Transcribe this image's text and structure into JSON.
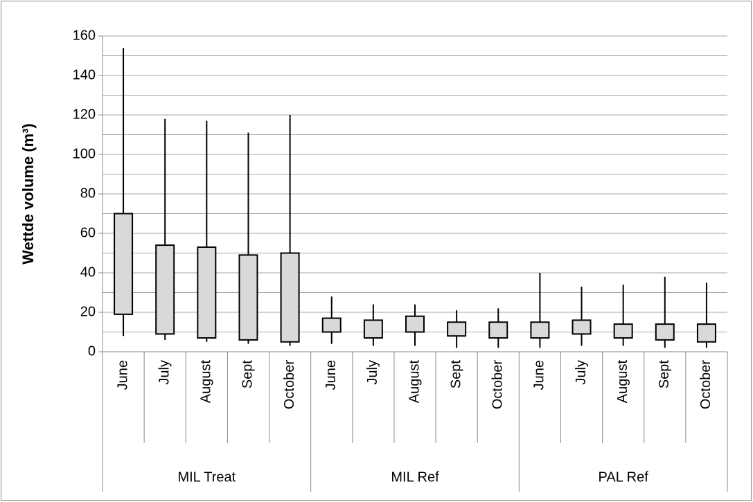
{
  "chart_data": {
    "type": "box",
    "y_label": "Wettde volume (m³)",
    "ylim": [
      0,
      160
    ],
    "yticks": [
      0,
      20,
      40,
      60,
      80,
      100,
      120,
      140,
      160
    ],
    "minor_grid": [
      10,
      30,
      50,
      70,
      90,
      110,
      130,
      150
    ],
    "grid": true,
    "color": "#d9d9d9",
    "groups": [
      {
        "name": "MIL Treat",
        "categories": [
          "June",
          "July",
          "August",
          "Sept",
          "October"
        ],
        "min": [
          8,
          6,
          5,
          4,
          3
        ],
        "q1": [
          19,
          9,
          7,
          6,
          5
        ],
        "q3": [
          70,
          54,
          53,
          49,
          50
        ],
        "max": [
          154,
          118,
          117,
          111,
          120
        ]
      },
      {
        "name": "MIL Ref",
        "categories": [
          "June",
          "July",
          "August",
          "Sept",
          "October"
        ],
        "min": [
          4,
          3,
          3,
          2,
          2
        ],
        "q1": [
          10,
          7,
          10,
          8,
          7
        ],
        "q3": [
          17,
          16,
          18,
          15,
          15
        ],
        "max": [
          28,
          24,
          24,
          21,
          22
        ]
      },
      {
        "name": "PAL Ref",
        "categories": [
          "June",
          "July",
          "August",
          "Sept",
          "October"
        ],
        "min": [
          2,
          3,
          3,
          2,
          2
        ],
        "q1": [
          7,
          9,
          7,
          6,
          5
        ],
        "q3": [
          15,
          16,
          14,
          14,
          14
        ],
        "max": [
          40,
          33,
          34,
          38,
          35
        ]
      }
    ]
  }
}
